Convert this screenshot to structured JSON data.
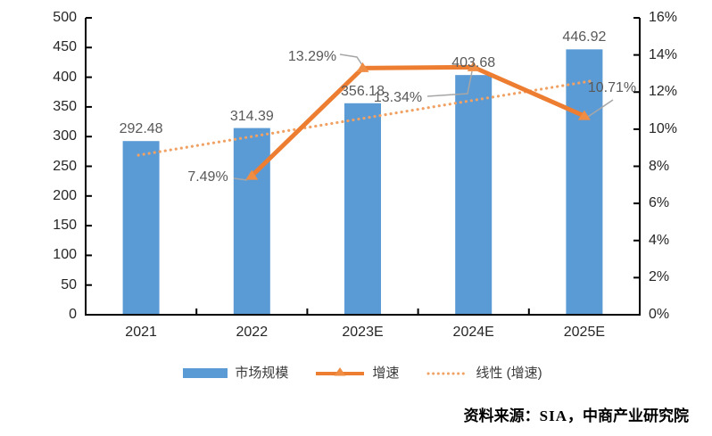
{
  "chart_data": {
    "type": "bar",
    "subtype": "bar-line-combo",
    "categories": [
      "2021",
      "2022",
      "2023E",
      "2024E",
      "2025E"
    ],
    "series": [
      {
        "name": "市场规模",
        "kind": "column",
        "axis": "left",
        "color": "#5B9BD5",
        "values": [
          292.48,
          314.39,
          356.18,
          403.68,
          446.92
        ],
        "data_labels": [
          "292.48",
          "314.39",
          "356.18",
          "403.68",
          "446.92"
        ]
      },
      {
        "name": "增速",
        "kind": "line",
        "axis": "right",
        "color": "#ED7D31",
        "marker": "triangle",
        "values": [
          null,
          7.49,
          13.29,
          13.34,
          10.71
        ],
        "data_labels": [
          null,
          "7.49%",
          "13.29%",
          "13.34%",
          "10.71%"
        ]
      },
      {
        "name": "线性 (增速)",
        "kind": "linear-trendline",
        "axis": "right",
        "color": "#F0A163",
        "style": "dotted",
        "start_pct": 8.6,
        "end_pct": 12.6
      }
    ],
    "left_axis": {
      "min": 0,
      "max": 500,
      "step": 50,
      "tick_labels": [
        "0",
        "50",
        "100",
        "150",
        "200",
        "250",
        "300",
        "350",
        "400",
        "450",
        "500"
      ]
    },
    "right_axis": {
      "min": 0,
      "max": 16,
      "step": 2,
      "tick_labels": [
        "0%",
        "2%",
        "4%",
        "6%",
        "8%",
        "10%",
        "12%",
        "14%",
        "16%"
      ]
    },
    "grid": false,
    "legend_position": "bottom"
  },
  "legend": {
    "market_size": "市场规模",
    "growth": "增速",
    "trend": "线性 (增速)"
  },
  "source": {
    "prefix": "资料来源：",
    "sia": "SIA",
    "suffix": "，中商产业研究院"
  },
  "colors": {
    "bar": "#5B9BD5",
    "line": "#ED7D31",
    "marker": "#EF8D44",
    "trendline": "#F0A163",
    "data_label": "#595959",
    "axis_text": "#262626",
    "leader_line": "#A6A6A6",
    "axis_line": "#000000"
  }
}
